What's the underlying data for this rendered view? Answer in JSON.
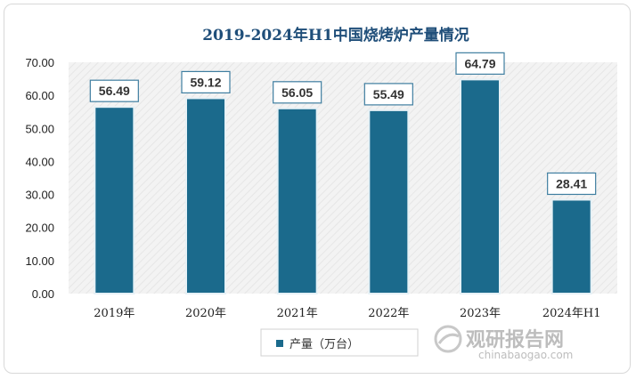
{
  "chart_data": {
    "type": "bar",
    "title": "2019-2024年H1中国烧烤炉产量情况",
    "categories": [
      "2019年",
      "2020年",
      "2021年",
      "2022年",
      "2023年",
      "2024年H1"
    ],
    "series": [
      {
        "name": "产量（万台）",
        "values": [
          56.49,
          59.12,
          56.05,
          55.49,
          64.79,
          28.41
        ]
      }
    ],
    "y_ticks": [
      "0.00",
      "10.00",
      "20.00",
      "30.00",
      "40.00",
      "50.00",
      "60.00",
      "70.00"
    ],
    "ylim": [
      0,
      70
    ],
    "data_labels": [
      "56.49",
      "59.12",
      "56.05",
      "55.49",
      "64.79",
      "28.41"
    ],
    "legend_position": "bottom",
    "grid": false,
    "colors": {
      "bar": "#1b6a8c",
      "bar_edge": "#e6f1f6",
      "plot_bg": "#f1f1f1",
      "title": "#1f4e79"
    }
  },
  "watermark": {
    "cn": "观研报告网",
    "en": "chinabaogao.com"
  }
}
